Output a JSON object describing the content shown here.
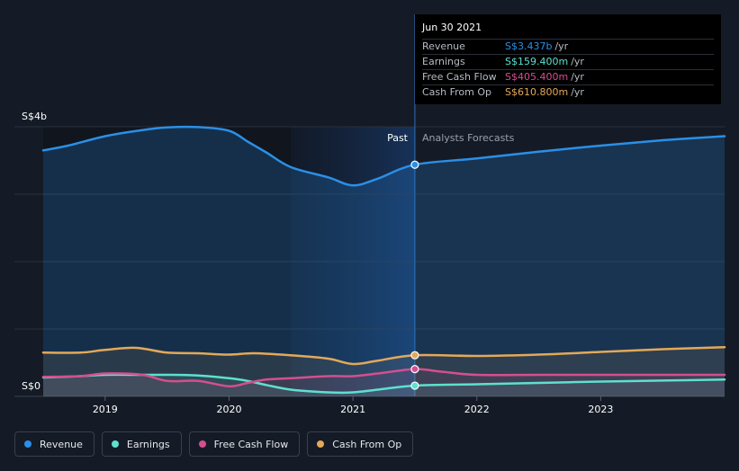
{
  "chart_data": {
    "type": "line",
    "title": "",
    "y_axis": {
      "top_label": "S$4b",
      "bottom_label": "S$0",
      "ylim": [
        0,
        4000
      ]
    },
    "x_axis": {
      "ticks": [
        "2019",
        "2020",
        "2021",
        "2022",
        "2023"
      ],
      "xlim": [
        2018.5,
        2024
      ]
    },
    "regions": {
      "past_label": "Past",
      "forecast_label": "Analysts Forecasts",
      "past_forecast_boundary": 2021.5,
      "highlight_start": 2020.5
    },
    "series": [
      {
        "name": "Revenue",
        "color": "#2b8fe6",
        "x": [
          2018.5,
          2018.7,
          2019.0,
          2019.3,
          2019.5,
          2019.75,
          2020.0,
          2020.15,
          2020.3,
          2020.5,
          2020.8,
          2021.0,
          2021.2,
          2021.5,
          2022.0,
          2022.5,
          2023.0,
          2023.5,
          2024.0
        ],
        "y": [
          3650,
          3720,
          3860,
          3950,
          3990,
          3995,
          3940,
          3780,
          3620,
          3400,
          3250,
          3130,
          3230,
          3437,
          3530,
          3630,
          3720,
          3800,
          3860
        ]
      },
      {
        "name": "Earnings",
        "color": "#5ee0cf",
        "x": [
          2018.5,
          2018.8,
          2019.0,
          2019.3,
          2019.5,
          2019.75,
          2020.0,
          2020.15,
          2020.3,
          2020.5,
          2020.8,
          2021.0,
          2021.2,
          2021.5,
          2022.0,
          2022.5,
          2023.0,
          2023.5,
          2024.0
        ],
        "y": [
          280,
          300,
          320,
          320,
          320,
          310,
          270,
          230,
          170,
          100,
          60,
          60,
          100,
          159.4,
          180,
          200,
          220,
          235,
          250
        ]
      },
      {
        "name": "Free Cash Flow",
        "color": "#d44f8f",
        "x": [
          2018.5,
          2018.8,
          2019.0,
          2019.3,
          2019.5,
          2019.75,
          2020.0,
          2020.15,
          2020.3,
          2020.5,
          2020.8,
          2021.0,
          2021.2,
          2021.5,
          2021.7,
          2022.0,
          2022.5,
          2023.0,
          2023.5,
          2024.0
        ],
        "y": [
          290,
          300,
          340,
          320,
          230,
          230,
          150,
          200,
          250,
          270,
          300,
          300,
          340,
          405.4,
          370,
          320,
          320,
          320,
          320,
          320
        ]
      },
      {
        "name": "Cash From Op",
        "color": "#e3a85a",
        "x": [
          2018.5,
          2018.8,
          2019.0,
          2019.25,
          2019.5,
          2019.75,
          2020.0,
          2020.2,
          2020.5,
          2020.8,
          2021.0,
          2021.2,
          2021.5,
          2022.0,
          2022.5,
          2023.0,
          2023.5,
          2024.0
        ],
        "y": [
          650,
          650,
          690,
          720,
          650,
          640,
          620,
          640,
          610,
          560,
          480,
          530,
          610.8,
          600,
          620,
          660,
          700,
          730
        ]
      }
    ]
  },
  "tooltip": {
    "date": "Jun 30 2021",
    "rows": [
      {
        "label": "Revenue",
        "value": "S$3.437b",
        "unit": "/yr",
        "color": "#2b8fe6"
      },
      {
        "label": "Earnings",
        "value": "S$159.400m",
        "unit": "/yr",
        "color": "#5ee0cf"
      },
      {
        "label": "Free Cash Flow",
        "value": "S$405.400m",
        "unit": "/yr",
        "color": "#d44f8f"
      },
      {
        "label": "Cash From Op",
        "value": "S$610.800m",
        "unit": "/yr",
        "color": "#e3a85a"
      }
    ]
  },
  "legend": [
    {
      "label": "Revenue",
      "color": "#2b8fe6"
    },
    {
      "label": "Earnings",
      "color": "#5ee0cf"
    },
    {
      "label": "Free Cash Flow",
      "color": "#d44f8f"
    },
    {
      "label": "Cash From Op",
      "color": "#e3a85a"
    }
  ]
}
